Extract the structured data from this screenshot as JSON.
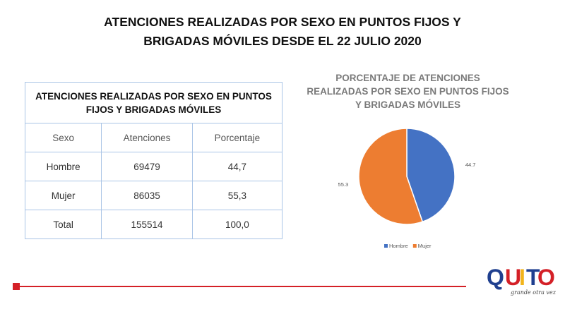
{
  "slide": {
    "title_line1": "ATENCIONES REALIZADAS POR SEXO EN PUNTOS FIJOS Y",
    "title_line2": "BRIGADAS MÓVILES DESDE EL 22 JULIO 2020"
  },
  "table": {
    "caption": "ATENCIONES REALIZADAS POR SEXO EN PUNTOS FIJOS Y BRIGADAS MÓVILES",
    "headers": [
      "Sexo",
      "Atenciones",
      "Porcentaje"
    ],
    "rows": [
      [
        "Hombre",
        "69479",
        "44,7"
      ],
      [
        "Mujer",
        "86035",
        "55,3"
      ],
      [
        "Total",
        "155514",
        "100,0"
      ]
    ]
  },
  "chart_data": {
    "type": "pie",
    "title_line1": "PORCENTAJE DE ATENCIONES",
    "title_line2": "REALIZADAS POR SEXO EN PUNTOS FIJOS",
    "title_line3": "Y BRIGADAS MÓVILES",
    "categories": [
      "Hombre",
      "Mujer"
    ],
    "values": [
      44.7,
      55.3
    ],
    "labels": [
      "44.7",
      "55.3"
    ],
    "colors": [
      "#4472c4",
      "#ed7d31"
    ],
    "legend_position": "bottom"
  },
  "logo": {
    "text": "QUITO",
    "tagline": "grande otra vez",
    "colors": [
      "#1f3f8f",
      "#d42027",
      "#f2b41a"
    ]
  }
}
